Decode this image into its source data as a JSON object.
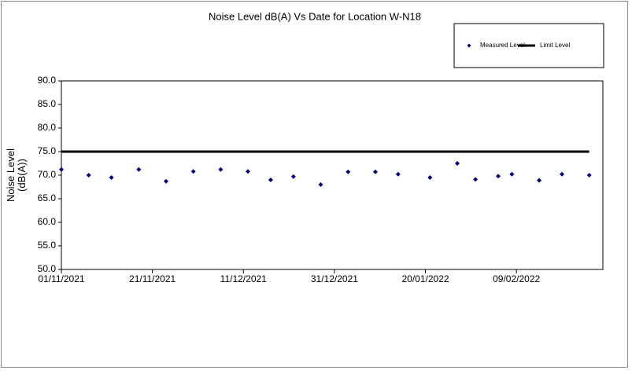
{
  "chart_data": {
    "type": "scatter",
    "title": "Noise Level dB(A) Vs Date for Location W-N18",
    "y_label": "Noise Level (dB(A))",
    "x": [
      "01/11/2021",
      "07/11/2021",
      "12/11/2021",
      "18/11/2021",
      "24/11/2021",
      "30/11/2021",
      "06/12/2021",
      "12/12/2021",
      "17/12/2021",
      "22/12/2021",
      "28/12/2021",
      "03/01/2022",
      "09/01/2022",
      "14/01/2022",
      "21/01/2022",
      "27/01/2022",
      "31/01/2022",
      "05/02/2022",
      "08/02/2022",
      "14/02/2022",
      "19/02/2022",
      "25/02/2022"
    ],
    "series": [
      {
        "name": "Measured Level",
        "color": "#000080",
        "style": "marker",
        "values": [
          71.2,
          70.0,
          69.5,
          71.2,
          68.7,
          70.8,
          71.2,
          70.8,
          69.0,
          69.7,
          68.0,
          70.7,
          70.7,
          70.2,
          69.5,
          72.5,
          69.1,
          69.8,
          70.2,
          68.9,
          70.2,
          70.0
        ]
      },
      {
        "name": "Limit Level",
        "color": "#000000",
        "style": "line",
        "values": [
          75,
          75,
          75,
          75,
          75,
          75,
          75,
          75,
          75,
          75,
          75,
          75,
          75,
          75,
          75,
          75,
          75,
          75,
          75,
          75,
          75,
          75
        ]
      }
    ],
    "xlim": [
      "01/11/2021",
      "28/02/2022"
    ],
    "xticks": [
      "01/11/2021",
      "21/11/2021",
      "11/12/2021",
      "31/12/2021",
      "20/01/2022",
      "09/02/2022"
    ],
    "ylim": [
      50,
      90
    ],
    "yticks": [
      {
        "value": 50,
        "label": "50.0"
      },
      {
        "value": 55,
        "label": "55.0"
      },
      {
        "value": 60,
        "label": "60.0"
      },
      {
        "value": 65,
        "label": "65.0"
      },
      {
        "value": 70,
        "label": "70.0"
      },
      {
        "value": 75,
        "label": "75.0"
      },
      {
        "value": 80,
        "label": "80.0"
      },
      {
        "value": 85,
        "label": "85.0"
      },
      {
        "value": 90,
        "label": "90.0"
      }
    ],
    "grid": false,
    "legend": "top-right"
  }
}
